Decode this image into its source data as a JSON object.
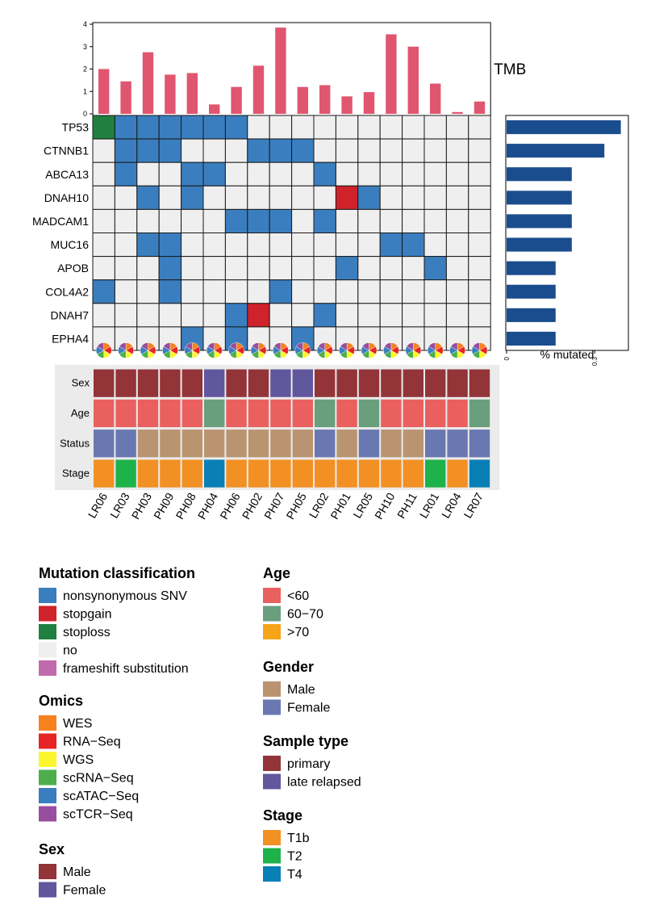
{
  "chart_data": {
    "type": "heatmap",
    "samples": [
      "LR06",
      "LR03",
      "PH03",
      "PH09",
      "PH08",
      "PH04",
      "PH06",
      "PH02",
      "PH07",
      "PH05",
      "LR02",
      "PH01",
      "LR05",
      "PH10",
      "PH11",
      "LR01",
      "LR04",
      "LR07"
    ],
    "genes": [
      "TP53",
      "CTNNB1",
      "ABCA13",
      "DNAH10",
      "MADCAM1",
      "MUC16",
      "APOB",
      "COL4A2",
      "DNAH7",
      "EPHA4"
    ],
    "mutation_codes": [
      "no",
      "nonsynonymous SNV",
      "stopgain",
      "stoploss"
    ],
    "matrix": [
      [
        3,
        1,
        1,
        1,
        1,
        1,
        1,
        0,
        0,
        0,
        0,
        0,
        0,
        0,
        0,
        0,
        0,
        0
      ],
      [
        0,
        1,
        1,
        1,
        0,
        0,
        0,
        1,
        1,
        1,
        0,
        0,
        0,
        0,
        0,
        0,
        0,
        0
      ],
      [
        0,
        1,
        0,
        0,
        1,
        1,
        0,
        0,
        0,
        0,
        1,
        0,
        0,
        0,
        0,
        0,
        0,
        0
      ],
      [
        0,
        0,
        1,
        0,
        1,
        0,
        0,
        0,
        0,
        0,
        0,
        2,
        1,
        0,
        0,
        0,
        0,
        0
      ],
      [
        0,
        0,
        0,
        0,
        0,
        0,
        1,
        1,
        1,
        0,
        1,
        0,
        0,
        0,
        0,
        0,
        0,
        0
      ],
      [
        0,
        0,
        1,
        1,
        0,
        0,
        0,
        0,
        0,
        0,
        0,
        0,
        0,
        1,
        1,
        0,
        0,
        0
      ],
      [
        0,
        0,
        0,
        1,
        0,
        0,
        0,
        0,
        0,
        0,
        0,
        1,
        0,
        0,
        0,
        1,
        0,
        0
      ],
      [
        1,
        0,
        0,
        1,
        0,
        0,
        0,
        0,
        1,
        0,
        0,
        0,
        0,
        0,
        0,
        0,
        0,
        0
      ],
      [
        0,
        0,
        0,
        0,
        0,
        0,
        1,
        2,
        0,
        0,
        1,
        0,
        0,
        0,
        0,
        0,
        0,
        0
      ],
      [
        0,
        0,
        0,
        0,
        1,
        0,
        1,
        0,
        0,
        1,
        0,
        0,
        0,
        0,
        0,
        0,
        0,
        0
      ]
    ],
    "tmb": {
      "label": "TMB",
      "values": [
        2.0,
        1.45,
        2.75,
        1.75,
        1.82,
        0.42,
        1.2,
        2.15,
        3.85,
        1.2,
        1.28,
        0.78,
        0.97,
        3.55,
        3.0,
        1.35,
        0.08,
        0.55
      ],
      "ylim": [
        0,
        4
      ],
      "yticks": [
        "0",
        "1",
        "2",
        "3",
        "4"
      ]
    },
    "pct_mutated": {
      "label": "% mutated",
      "values": [
        0.389,
        0.333,
        0.222,
        0.222,
        0.222,
        0.222,
        0.167,
        0.167,
        0.167,
        0.167
      ],
      "xlim": [
        0,
        0.39
      ],
      "xticks": [
        0,
        0.3
      ],
      "xtick_labels": [
        "0",
        "0.3"
      ]
    },
    "annotations": {
      "row_labels": [
        "Sex",
        "Age",
        "Status",
        "Stage"
      ],
      "sex": [
        "primary",
        "primary",
        "primary",
        "primary",
        "primary",
        "late relapsed",
        "primary",
        "primary",
        "late relapsed",
        "late relapsed",
        "primary",
        "primary",
        "primary",
        "primary",
        "primary",
        "primary",
        "primary",
        "primary"
      ],
      "age": [
        "<60",
        "<60",
        "<60",
        "<60",
        "<60",
        "60−70",
        "<60",
        "<60",
        "<60",
        "<60",
        "60−70",
        "<60",
        "60−70",
        "<60",
        "<60",
        "<60",
        "<60",
        "60−70"
      ],
      "status": [
        "Female",
        "Female",
        "Male",
        "Male",
        "Male",
        "Male",
        "Male",
        "Male",
        "Male",
        "Male",
        "Female",
        "Male",
        "Female",
        "Male",
        "Male",
        "Female",
        "Female",
        "Female"
      ],
      "stage": [
        "T1b",
        "T2",
        "T1b",
        "T1b",
        "T1b",
        "T4",
        "T1b",
        "T1b",
        "T1b",
        "T1b",
        "T1b",
        "T1b",
        "T1b",
        "T1b",
        "T1b",
        "T2",
        "T1b",
        "T4"
      ]
    },
    "omics_pies": [
      [
        "WES",
        "RNA−Seq",
        "WGS",
        "scRNA−Seq",
        "scATAC−Seq",
        "scTCR−Seq"
      ]
    ]
  },
  "legends": [
    {
      "title": "Mutation classification",
      "items": [
        {
          "label": "nonsynonymous SNV",
          "color": "#3A7EBF"
        },
        {
          "label": "stopgain",
          "color": "#D0222A"
        },
        {
          "label": "stoploss",
          "color": "#208040"
        },
        {
          "label": "no",
          "color": "#EFEFEF"
        },
        {
          "label": "frameshift substitution",
          "color": "#C06AAE"
        }
      ]
    },
    {
      "title": "Omics",
      "items": [
        {
          "label": "WES",
          "color": "#F6821F"
        },
        {
          "label": "RNA−Seq",
          "color": "#E62425"
        },
        {
          "label": "WGS",
          "color": "#FCF62E"
        },
        {
          "label": "scRNA−Seq",
          "color": "#4DAE4B"
        },
        {
          "label": "scATAC−Seq",
          "color": "#3A7EBF"
        },
        {
          "label": "scTCR−Seq",
          "color": "#984E9E"
        }
      ]
    },
    {
      "title": "Sex",
      "items": [
        {
          "label": "Male",
          "color": "#923438"
        },
        {
          "label": "Female",
          "color": "#60579D"
        }
      ]
    },
    {
      "title": "Age",
      "items": [
        {
          "label": "<60",
          "color": "#E9605E"
        },
        {
          "label": "60−70",
          "color": "#6A9F7E"
        },
        {
          "label": ">70",
          "color": "#F6A418"
        }
      ]
    },
    {
      "title": "Gender",
      "items": [
        {
          "label": "Male",
          "color": "#BA9470"
        },
        {
          "label": "Female",
          "color": "#6A78B2"
        }
      ]
    },
    {
      "title": "Sample type",
      "items": [
        {
          "label": "primary",
          "color": "#923438"
        },
        {
          "label": "late relapsed",
          "color": "#60579D"
        }
      ]
    },
    {
      "title": "Stage",
      "items": [
        {
          "label": "T1b",
          "color": "#F29023"
        },
        {
          "label": "T2",
          "color": "#1EB24B"
        },
        {
          "label": "T4",
          "color": "#0A7FB6"
        }
      ]
    }
  ],
  "colors": {
    "tmb_bar": "#E05670",
    "pct_bar": "#1A4D8E",
    "mutation": {
      "no": "#EFEFEF",
      "nonsynonymous SNV": "#3A7EBF",
      "stopgain": "#D0222A",
      "stoploss": "#208040"
    },
    "sex": {
      "primary": "#923438",
      "late relapsed": "#60579D"
    },
    "age": {
      "<60": "#E9605E",
      "60−70": "#6A9F7E",
      ">70": "#F6A418"
    },
    "status": {
      "Male": "#BA9470",
      "Female": "#6A78B2"
    },
    "stage": {
      "T1b": "#F29023",
      "T2": "#1EB24B",
      "T4": "#0A7FB6"
    },
    "pie": [
      "#F6821F",
      "#E62425",
      "#FCF62E",
      "#4DAE4B",
      "#3A7EBF",
      "#984E9E"
    ]
  }
}
